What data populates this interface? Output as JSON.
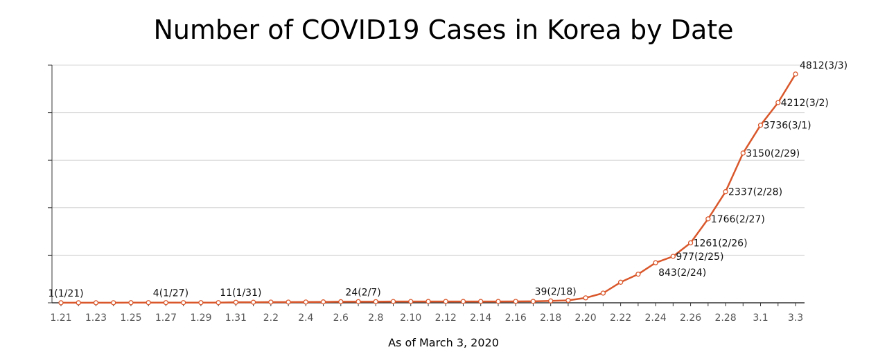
{
  "chart_data": {
    "type": "line",
    "title": "Number of COVID19 Cases in Korea by Date",
    "caption": "As of March 3, 2020",
    "xlabel": "",
    "ylabel": "",
    "ylim": [
      0,
      5000
    ],
    "y_gridlines": [
      0,
      1000,
      2000,
      3000,
      4000,
      5000
    ],
    "grid": true,
    "line_color": "#d9572b",
    "marker_fill": "#ffffff",
    "x_tick_labels": [
      "1.21",
      "1.23",
      "1.25",
      "1.27",
      "1.29",
      "1.31",
      "2.2",
      "2.4",
      "2.6",
      "2.8",
      "2.10",
      "2.12",
      "2.14",
      "2.16",
      "2.18",
      "2.20",
      "2.22",
      "2.24",
      "2.26",
      "2.28",
      "3.1",
      "3.3"
    ],
    "x": [
      "1.21",
      "1.22",
      "1.23",
      "1.24",
      "1.25",
      "1.26",
      "1.27",
      "1.28",
      "1.29",
      "1.30",
      "1.31",
      "2.1",
      "2.2",
      "2.3",
      "2.4",
      "2.5",
      "2.6",
      "2.7",
      "2.8",
      "2.9",
      "2.10",
      "2.11",
      "2.12",
      "2.13",
      "2.14",
      "2.15",
      "2.16",
      "2.17",
      "2.18",
      "2.19",
      "2.20",
      "2.21",
      "2.22",
      "2.23",
      "2.24",
      "2.25",
      "2.26",
      "2.27",
      "2.28",
      "2.29",
      "3.1",
      "3.2",
      "3.3"
    ],
    "series": [
      {
        "values": [
          1,
          1,
          1,
          2,
          3,
          4,
          4,
          4,
          4,
          4,
          11,
          12,
          15,
          15,
          16,
          19,
          23,
          24,
          24,
          27,
          27,
          28,
          28,
          28,
          28,
          28,
          29,
          30,
          39,
          51,
          104,
          204,
          433,
          602,
          843,
          977,
          1261,
          1766,
          2337,
          3150,
          3736,
          4212,
          4812
        ]
      }
    ],
    "data_labels": [
      {
        "index": 0,
        "text": "1(1/21)"
      },
      {
        "index": 6,
        "text": "4(1/27)"
      },
      {
        "index": 10,
        "text": "11(1/31)"
      },
      {
        "index": 17,
        "text": "24(2/7)"
      },
      {
        "index": 28,
        "text": "39(2/18)"
      },
      {
        "index": 34,
        "text": "843(2/24)"
      },
      {
        "index": 35,
        "text": "977(2/25)"
      },
      {
        "index": 36,
        "text": "1261(2/26)"
      },
      {
        "index": 37,
        "text": "1766(2/27)"
      },
      {
        "index": 38,
        "text": "2337(2/28)"
      },
      {
        "index": 39,
        "text": "3150(2/29)"
      },
      {
        "index": 40,
        "text": "3736(3/1)"
      },
      {
        "index": 41,
        "text": "4212(3/2)"
      },
      {
        "index": 42,
        "text": "4812(3/3)"
      }
    ]
  }
}
